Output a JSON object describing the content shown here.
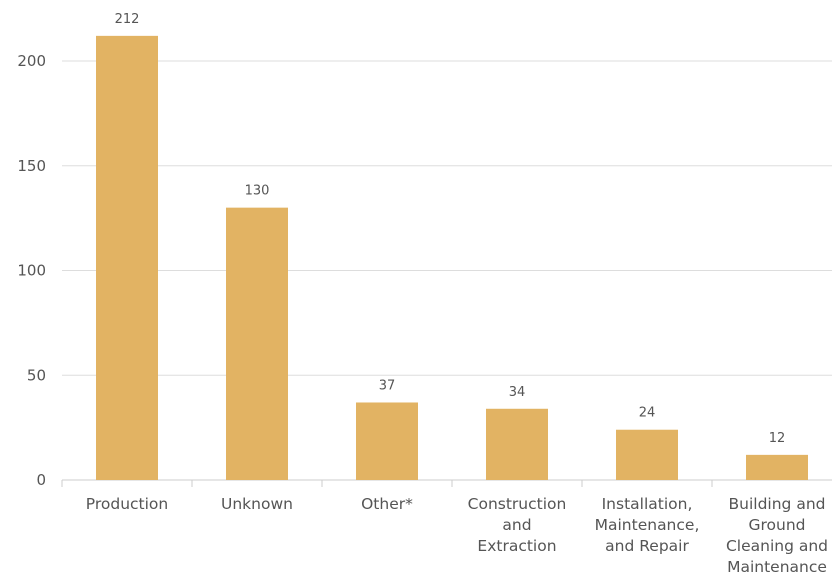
{
  "chart_data": {
    "type": "bar",
    "categories": [
      "Production",
      "Unknown",
      "Other*",
      "Construction and Extraction",
      "Installation, Maintenance, and Repair",
      "Building and Ground Cleaning and Maintenance"
    ],
    "category_lines": [
      [
        "Production"
      ],
      [
        "Unknown"
      ],
      [
        "Other*"
      ],
      [
        "Construction",
        "and",
        "Extraction"
      ],
      [
        "Installation,",
        "Maintenance,",
        "and Repair"
      ],
      [
        "Building and",
        "Ground",
        "Cleaning and",
        "Maintenance"
      ]
    ],
    "values": [
      212,
      130,
      37,
      34,
      24,
      12
    ],
    "data_labels": [
      "212",
      "130",
      "37",
      "34",
      "24",
      "12"
    ],
    "yticks": [
      0,
      50,
      100,
      150,
      200
    ],
    "ylim": [
      0,
      220
    ],
    "grid": true,
    "bar_color": "#E2B363",
    "title": "",
    "xlabel": "",
    "ylabel": ""
  }
}
